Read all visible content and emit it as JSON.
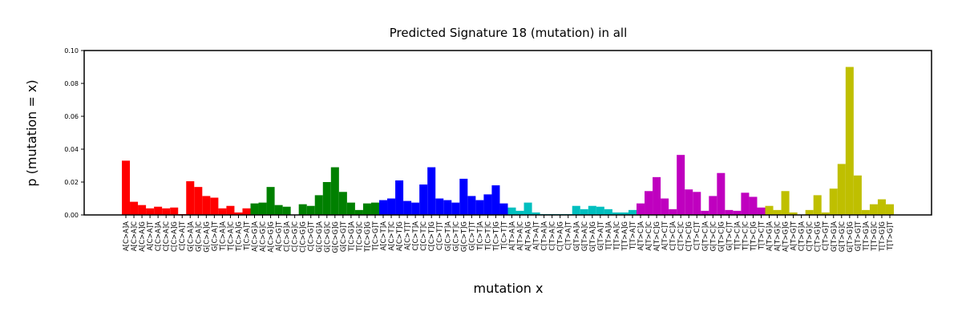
{
  "chart_data": {
    "type": "bar",
    "title": "Predicted Signature 18 (mutation) in all",
    "xlabel": "mutation x",
    "ylabel": "p (mutation = x)",
    "categories": [
      "A[C>A]A",
      "A[C>A]C",
      "A[C>A]G",
      "A[C>A]T",
      "C[C>A]A",
      "C[C>A]C",
      "C[C>A]G",
      "C[C>A]T",
      "G[C>A]A",
      "G[C>A]C",
      "G[C>A]G",
      "G[C>A]T",
      "T[C>A]A",
      "T[C>A]C",
      "T[C>A]G",
      "T[C>A]T",
      "A[C>G]A",
      "A[C>G]C",
      "A[C>G]G",
      "A[C>G]T",
      "C[C>G]A",
      "C[C>G]C",
      "C[C>G]G",
      "C[C>G]T",
      "G[C>G]A",
      "G[C>G]C",
      "G[C>G]G",
      "G[C>G]T",
      "T[C>G]A",
      "T[C>G]C",
      "T[C>G]G",
      "T[C>G]T",
      "A[C>T]A",
      "A[C>T]C",
      "A[C>T]G",
      "A[C>T]T",
      "C[C>T]A",
      "C[C>T]C",
      "C[C>T]G",
      "C[C>T]T",
      "G[C>T]A",
      "G[C>T]C",
      "G[C>T]G",
      "G[C>T]T",
      "T[C>T]A",
      "T[C>T]C",
      "T[C>T]G",
      "T[C>T]T",
      "A[T>A]A",
      "A[T>A]C",
      "A[T>A]G",
      "A[T>A]T",
      "C[T>A]A",
      "C[T>A]C",
      "C[T>A]G",
      "C[T>A]T",
      "G[T>A]A",
      "G[T>A]C",
      "G[T>A]G",
      "G[T>A]T",
      "T[T>A]A",
      "T[T>A]C",
      "T[T>A]G",
      "T[T>A]T",
      "A[T>C]A",
      "A[T>C]C",
      "A[T>C]G",
      "A[T>C]T",
      "C[T>C]A",
      "C[T>C]C",
      "C[T>C]G",
      "C[T>C]T",
      "G[T>C]A",
      "G[T>C]C",
      "G[T>C]G",
      "G[T>C]T",
      "T[T>C]A",
      "T[T>C]C",
      "T[T>C]G",
      "T[T>C]T",
      "A[T>G]A",
      "A[T>G]C",
      "A[T>G]G",
      "A[T>G]T",
      "C[T>G]A",
      "C[T>G]C",
      "C[T>G]G",
      "C[T>G]T",
      "G[T>G]A",
      "G[T>G]C",
      "G[T>G]G",
      "G[T>G]T",
      "T[T>G]A",
      "T[T>G]C",
      "T[T>G]G",
      "T[T>G]T"
    ],
    "values": [
      0.033,
      0.008,
      0.006,
      0.004,
      0.005,
      0.004,
      0.0045,
      0.0005,
      0.0205,
      0.017,
      0.0115,
      0.0105,
      0.004,
      0.0055,
      0.0015,
      0.004,
      0.007,
      0.0075,
      0.017,
      0.006,
      0.005,
      0.0,
      0.0065,
      0.0055,
      0.012,
      0.02,
      0.029,
      0.014,
      0.0075,
      0.003,
      0.007,
      0.0075,
      0.009,
      0.01,
      0.021,
      0.0085,
      0.0075,
      0.0185,
      0.029,
      0.01,
      0.009,
      0.0075,
      0.022,
      0.0115,
      0.009,
      0.0125,
      0.018,
      0.007,
      0.0045,
      0.0025,
      0.0075,
      0.0015,
      0.0005,
      0.0005,
      0.0005,
      0.0005,
      0.0055,
      0.0035,
      0.0055,
      0.005,
      0.0035,
      0.0015,
      0.0015,
      0.003,
      0.007,
      0.0145,
      0.023,
      0.01,
      0.0035,
      0.0365,
      0.0155,
      0.014,
      0.0025,
      0.0115,
      0.0255,
      0.003,
      0.0025,
      0.0135,
      0.011,
      0.0045,
      0.0055,
      0.003,
      0.0145,
      0.0015,
      0.0,
      0.003,
      0.012,
      0.0015,
      0.016,
      0.031,
      0.09,
      0.024,
      0.003,
      0.0065,
      0.0095,
      0.0065
    ],
    "colors": [
      "#ff0000",
      "#ff0000",
      "#ff0000",
      "#ff0000",
      "#ff0000",
      "#ff0000",
      "#ff0000",
      "#ff0000",
      "#ff0000",
      "#ff0000",
      "#ff0000",
      "#ff0000",
      "#ff0000",
      "#ff0000",
      "#ff0000",
      "#ff0000",
      "#008000",
      "#008000",
      "#008000",
      "#008000",
      "#008000",
      "#008000",
      "#008000",
      "#008000",
      "#008000",
      "#008000",
      "#008000",
      "#008000",
      "#008000",
      "#008000",
      "#008000",
      "#008000",
      "#0000ff",
      "#0000ff",
      "#0000ff",
      "#0000ff",
      "#0000ff",
      "#0000ff",
      "#0000ff",
      "#0000ff",
      "#0000ff",
      "#0000ff",
      "#0000ff",
      "#0000ff",
      "#0000ff",
      "#0000ff",
      "#0000ff",
      "#0000ff",
      "#00bfbf",
      "#00bfbf",
      "#00bfbf",
      "#00bfbf",
      "#00bfbf",
      "#00bfbf",
      "#00bfbf",
      "#00bfbf",
      "#00bfbf",
      "#00bfbf",
      "#00bfbf",
      "#00bfbf",
      "#00bfbf",
      "#00bfbf",
      "#00bfbf",
      "#00bfbf",
      "#bf00bf",
      "#bf00bf",
      "#bf00bf",
      "#bf00bf",
      "#bf00bf",
      "#bf00bf",
      "#bf00bf",
      "#bf00bf",
      "#bf00bf",
      "#bf00bf",
      "#bf00bf",
      "#bf00bf",
      "#bf00bf",
      "#bf00bf",
      "#bf00bf",
      "#bf00bf",
      "#bfbf00",
      "#bfbf00",
      "#bfbf00",
      "#bfbf00",
      "#bfbf00",
      "#bfbf00",
      "#bfbf00",
      "#bfbf00",
      "#bfbf00",
      "#bfbf00",
      "#bfbf00",
      "#bfbf00",
      "#bfbf00",
      "#bfbf00",
      "#bfbf00",
      "#bfbf00"
    ],
    "ylim": [
      0,
      0.1
    ],
    "yticks": [
      {
        "value": 0,
        "label": "0.00"
      },
      {
        "value": 0.02,
        "label": "0.02"
      },
      {
        "value": 0.04,
        "label": "0.04"
      },
      {
        "value": 0.06,
        "label": "0.06"
      },
      {
        "value": 0.08,
        "label": "0.08"
      },
      {
        "value": 0.1,
        "label": "0.10"
      }
    ]
  }
}
